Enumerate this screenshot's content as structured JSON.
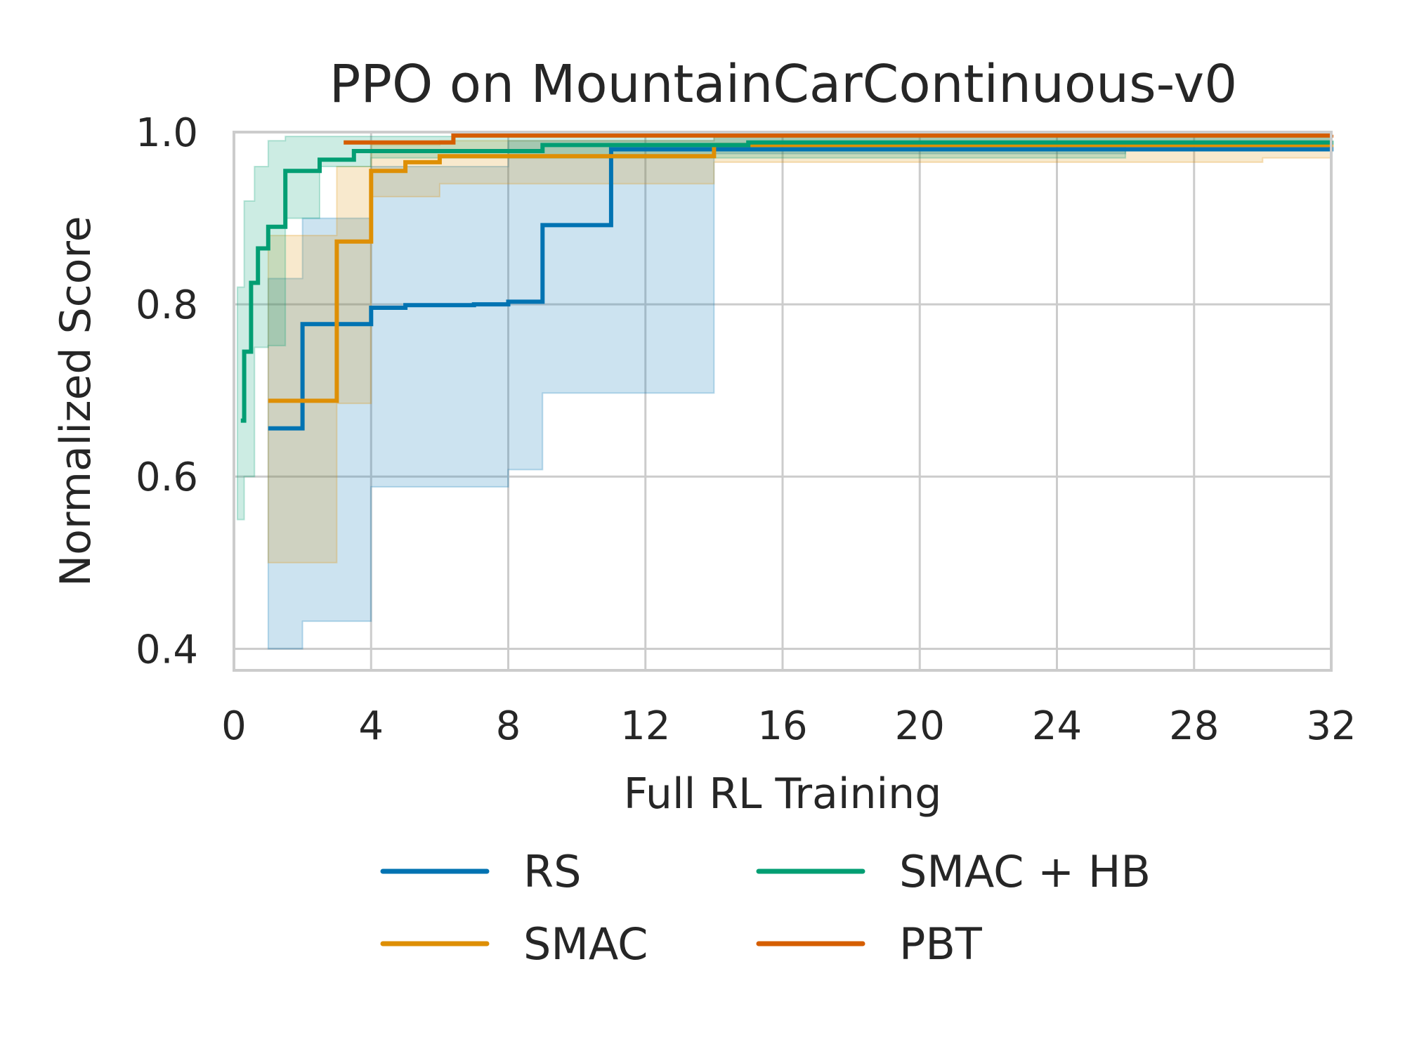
{
  "chart_data": {
    "type": "line",
    "title": "PPO on MountainCarContinuous-v0",
    "xlabel": "Full RL Training",
    "ylabel": "Normalized Score",
    "xlim": [
      0,
      32
    ],
    "ylim": [
      0.375,
      1.0
    ],
    "xticks": [
      "0",
      "4",
      "8",
      "12",
      "16",
      "20",
      "24",
      "28",
      "32"
    ],
    "yticks": [
      "0.4",
      "0.6",
      "0.8",
      "1.0"
    ],
    "grid": true,
    "legend": {
      "placement": "below",
      "columns": 2
    },
    "series": [
      {
        "name": "RS",
        "color": "#0173b2",
        "step": true,
        "x": [
          1,
          2,
          4,
          5,
          7,
          8,
          9,
          11,
          32
        ],
        "y": [
          0.656,
          0.777,
          0.796,
          0.799,
          0.8,
          0.803,
          0.892,
          0.98,
          0.99
        ],
        "band_x": [
          1,
          2,
          4,
          8,
          9,
          14,
          26,
          32
        ],
        "band_lower": [
          0.4,
          0.432,
          0.588,
          0.608,
          0.697,
          0.975,
          0.98,
          0.988
        ],
        "band_upper": [
          0.83,
          0.9,
          0.96,
          0.99,
          0.99,
          0.995,
          0.995,
          0.995
        ]
      },
      {
        "name": "SMAC",
        "color": "#de8f05",
        "step": true,
        "x": [
          1,
          3,
          4,
          5,
          6,
          14,
          32
        ],
        "y": [
          0.688,
          0.873,
          0.955,
          0.965,
          0.972,
          0.985,
          0.99
        ],
        "band_x": [
          1,
          3,
          4,
          6,
          14,
          30,
          32
        ],
        "band_lower": [
          0.5,
          0.685,
          0.925,
          0.94,
          0.965,
          0.97,
          0.975
        ],
        "band_upper": [
          0.88,
          0.96,
          0.985,
          0.99,
          0.995,
          0.995,
          0.995
        ]
      },
      {
        "name": "SMAC + HB",
        "color": "#029e73",
        "step": true,
        "x": [
          0.2,
          0.3,
          0.5,
          0.7,
          1.0,
          1.5,
          2.5,
          3.5,
          9,
          15,
          32
        ],
        "y": [
          0.665,
          0.745,
          0.825,
          0.865,
          0.89,
          0.955,
          0.968,
          0.978,
          0.985,
          0.988,
          0.99
        ],
        "band_x": [
          0.1,
          0.3,
          0.6,
          1.0,
          1.5,
          2.5,
          4,
          26,
          32
        ],
        "band_lower": [
          0.55,
          0.6,
          0.75,
          0.752,
          0.9,
          0.96,
          0.97,
          0.985,
          0.99
        ],
        "band_upper": [
          0.82,
          0.92,
          0.96,
          0.99,
          0.995,
          0.995,
          0.995,
          0.995,
          0.995
        ]
      },
      {
        "name": "PBT",
        "color": "#d55e00",
        "step": true,
        "x": [
          3.2,
          6.4,
          32
        ],
        "y": [
          0.988,
          0.996,
          0.997
        ],
        "band_x": [],
        "band_lower": [],
        "band_upper": []
      }
    ]
  }
}
